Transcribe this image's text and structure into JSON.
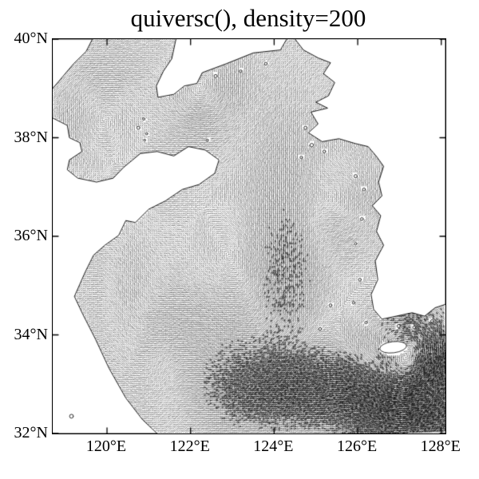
{
  "chart_data": {
    "type": "quiver",
    "title": "quiversc(), density=200",
    "density": 200,
    "x_axis": {
      "label": "",
      "ticks": [
        "120°E",
        "122°E",
        "124°E",
        "126°E",
        "128°E"
      ],
      "range_lon": [
        118.7,
        128.1
      ]
    },
    "y_axis": {
      "label": "",
      "ticks": [
        "40°N",
        "38°N",
        "36°N",
        "34°N",
        "32°N"
      ],
      "range_lat": [
        32,
        40
      ]
    },
    "grid": false,
    "legend": "none",
    "colors": {
      "arrows": "#000000",
      "land": "#ffffff",
      "coastline": "#000000",
      "frame": "#000000"
    },
    "description": "Dense black quiver (vector) field of surface currents over the Bohai Sea, Yellow Sea and waters around the Korean Peninsula; land shown white with thin coastlines; strongest, darkest swirling flow in the bottom-right near Jeju Island."
  }
}
